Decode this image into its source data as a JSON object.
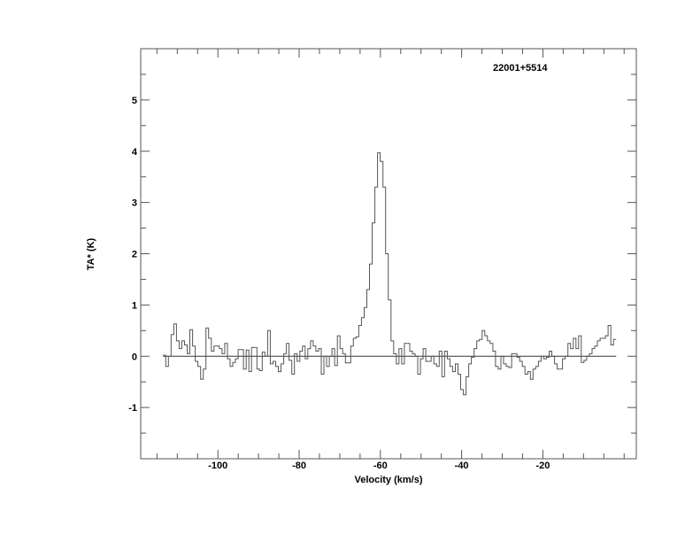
{
  "chart_data": {
    "type": "line",
    "style": "histogram-step",
    "title": "22001+5514",
    "xlabel": "Velocity (km/s)",
    "ylabel": "TA* (K)",
    "xlim": [
      -119,
      3
    ],
    "ylim": [
      -2,
      6
    ],
    "xticks": [
      -100,
      -80,
      -60,
      -40,
      -20
    ],
    "yticks": [
      -1,
      0,
      1,
      2,
      3,
      4,
      5
    ],
    "x_minor_step": 5,
    "y_minor_step": 0.5,
    "grid": false,
    "baseline": 0,
    "line_color": "#555555",
    "x_start": -113.5,
    "channel_width": 0.66,
    "values": [
      0.02,
      -0.2,
      0.0,
      0.42,
      0.63,
      0.3,
      0.15,
      0.3,
      0.22,
      0.05,
      0.52,
      0.2,
      -0.1,
      -0.2,
      -0.45,
      -0.25,
      0.55,
      0.35,
      0.1,
      0.2,
      0.2,
      0.15,
      0.05,
      0.25,
      -0.05,
      -0.2,
      -0.12,
      -0.05,
      0.13,
      0.13,
      -0.25,
      0.12,
      -0.3,
      0.17,
      0.17,
      -0.25,
      -0.28,
      0.08,
      0.0,
      0.5,
      -0.15,
      -0.1,
      -0.2,
      -0.3,
      -0.15,
      0.05,
      0.25,
      -0.08,
      -0.35,
      0.05,
      -0.1,
      0.1,
      0.2,
      -0.05,
      0.15,
      0.3,
      0.2,
      0.1,
      0.15,
      -0.35,
      0.0,
      -0.2,
      0.0,
      0.15,
      -0.18,
      0.4,
      0.15,
      0.05,
      -0.13,
      -0.13,
      0.2,
      0.35,
      0.38,
      0.6,
      0.75,
      0.95,
      1.3,
      1.8,
      2.6,
      3.3,
      3.97,
      3.8,
      3.3,
      2.0,
      1.1,
      0.3,
      0.05,
      -0.15,
      0.15,
      -0.15,
      0.25,
      0.25,
      0.1,
      0.05,
      0.0,
      -0.35,
      -0.05,
      0.15,
      -0.1,
      -0.1,
      0.0,
      -0.15,
      -0.2,
      0.1,
      -0.4,
      0.1,
      -0.05,
      -0.2,
      -0.3,
      -0.15,
      -0.35,
      -0.65,
      -0.75,
      -0.4,
      -0.15,
      -0.02,
      0.15,
      0.3,
      0.33,
      0.5,
      0.4,
      0.3,
      0.25,
      0.1,
      -0.2,
      -0.25,
      0.0,
      -0.15,
      -0.2,
      -0.22,
      0.05,
      0.05,
      -0.02,
      -0.1,
      -0.2,
      -0.35,
      -0.3,
      -0.45,
      -0.25,
      -0.2,
      -0.1,
      0.0,
      -0.05,
      -0.02,
      0.1,
      0.0,
      -0.15,
      -0.25,
      -0.25,
      -0.05,
      0.0,
      0.25,
      0.15,
      0.35,
      0.15,
      0.4,
      -0.12,
      -0.08,
      0.0,
      0.05,
      0.15,
      0.2,
      0.3,
      0.35,
      0.35,
      0.4,
      0.6,
      0.22,
      0.33
    ]
  }
}
